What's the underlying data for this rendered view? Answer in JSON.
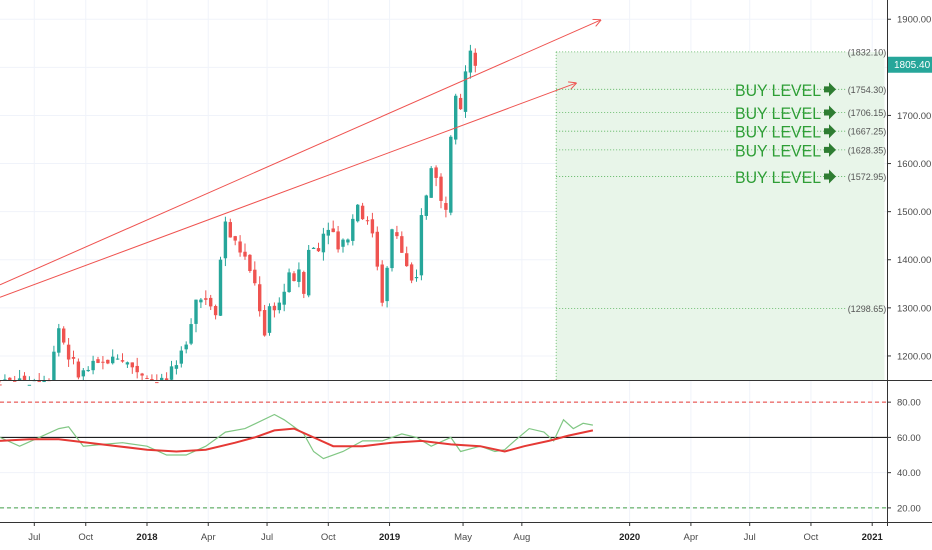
{
  "chart_data": [
    {
      "type": "candlestick",
      "title": "",
      "ylim": [
        1150,
        1940
      ],
      "y_ticks": [
        1200,
        1300,
        1400,
        1500,
        1600,
        1700,
        1800,
        1900
      ],
      "y_tick_labels": [
        "1200.00",
        "1300.00",
        "1400.00",
        "1500.00",
        "1600.00",
        "1700.00",
        "1800.00",
        "1900.00"
      ],
      "current_price": "1805.40",
      "price_badge_color": "#26a69a",
      "up_color": "#26a69a",
      "down_color": "#ef5350",
      "trendline_color": "#ef5350",
      "level_color": "#4caf50",
      "zone_fill": "#e8f5e9",
      "levels": [
        {
          "price": 1832.1,
          "label": "(1832.10)",
          "buy": false
        },
        {
          "price": 1754.3,
          "label": "(1754.30)",
          "buy": true
        },
        {
          "price": 1706.15,
          "label": "(1706.15)",
          "buy": true
        },
        {
          "price": 1667.25,
          "label": "(1667.25)",
          "buy": true
        },
        {
          "price": 1628.35,
          "label": "(1628.35)",
          "buy": true
        },
        {
          "price": 1572.95,
          "label": "(1572.95)",
          "buy": true
        },
        {
          "price": 1298.65,
          "label": "(1298.65)",
          "buy": false
        }
      ],
      "buy_label": "BUY LEVEL",
      "trendlines": [
        {
          "from": {
            "t": 0,
            "price": 1348
          },
          "to": {
            "t": 122.5,
            "price": 1898
          },
          "arrow": true
        },
        {
          "from": {
            "t": 0,
            "price": 1322
          },
          "to": {
            "t": 117.5,
            "price": 1767
          },
          "arrow": true
        }
      ],
      "anchor_points": [
        [
          0,
          1140
        ],
        [
          6,
          1150
        ],
        [
          10,
          1160
        ],
        [
          12,
          1260
        ],
        [
          14,
          1200
        ],
        [
          16,
          1160
        ],
        [
          20,
          1180
        ],
        [
          24,
          1200
        ],
        [
          28,
          1170
        ],
        [
          31,
          1150
        ],
        [
          34,
          1150
        ],
        [
          36,
          1170
        ],
        [
          38,
          1240
        ],
        [
          40,
          1320
        ],
        [
          42,
          1320
        ],
        [
          44,
          1300
        ],
        [
          45,
          1400
        ],
        [
          46,
          1480
        ],
        [
          47,
          1450
        ],
        [
          49,
          1420
        ],
        [
          51,
          1380
        ],
        [
          52,
          1350
        ],
        [
          53,
          1300
        ],
        [
          54,
          1250
        ],
        [
          55,
          1300
        ],
        [
          57,
          1310
        ],
        [
          59,
          1360
        ],
        [
          61,
          1370
        ],
        [
          62,
          1330
        ],
        [
          63,
          1420
        ],
        [
          65,
          1430
        ],
        [
          67,
          1480
        ],
        [
          69,
          1430
        ],
        [
          71,
          1450
        ],
        [
          73,
          1520
        ],
        [
          74,
          1490
        ],
        [
          76,
          1460
        ],
        [
          78,
          1320
        ],
        [
          79,
          1380
        ],
        [
          80,
          1460
        ],
        [
          81,
          1450
        ],
        [
          83,
          1380
        ],
        [
          84,
          1340
        ],
        [
          85,
          1360
        ],
        [
          86,
          1500
        ],
        [
          87,
          1530
        ],
        [
          88,
          1590
        ],
        [
          89,
          1580
        ],
        [
          90,
          1520
        ],
        [
          91,
          1510
        ],
        [
          92,
          1670
        ],
        [
          93,
          1760
        ],
        [
          94,
          1720
        ],
        [
          95,
          1790
        ],
        [
          96,
          1820
        ],
        [
          97,
          1805
        ]
      ],
      "x_ticks": [
        {
          "t": 7,
          "label": "Jul",
          "bold": false
        },
        {
          "t": 17.5,
          "label": "Oct",
          "bold": false
        },
        {
          "t": 30,
          "label": "2018",
          "bold": true
        },
        {
          "t": 42.5,
          "label": "Apr",
          "bold": false
        },
        {
          "t": 54.5,
          "label": "Jul",
          "bold": false
        },
        {
          "t": 67,
          "label": "Oct",
          "bold": false
        },
        {
          "t": 79.5,
          "label": "2019",
          "bold": true
        },
        {
          "t": 94.5,
          "label": "May",
          "bold": false
        },
        {
          "t": 106.5,
          "label": "Aug",
          "bold": false
        },
        {
          "t": 128.5,
          "label": "2020",
          "bold": true
        },
        {
          "t": 141,
          "label": "Apr",
          "bold": false
        },
        {
          "t": 153,
          "label": "Jul",
          "bold": false
        },
        {
          "t": 165.5,
          "label": "Oct",
          "bold": false
        },
        {
          "t": 178,
          "label": "2021",
          "bold": true
        }
      ]
    },
    {
      "type": "line",
      "title": "",
      "ylim": [
        12,
        92
      ],
      "y_ticks": [
        20,
        40,
        60,
        80
      ],
      "y_tick_labels": [
        "20.00",
        "40.00",
        "60.00",
        "80.00"
      ],
      "bands": [
        {
          "value": 80,
          "color": "#e53935",
          "style": "dashed"
        },
        {
          "value": 60,
          "color": "#000000",
          "style": "solid"
        },
        {
          "value": 20,
          "color": "#43a047",
          "style": "dashed"
        }
      ],
      "series": [
        {
          "color": "#81c784",
          "values": [
            [
              0,
              60
            ],
            [
              4,
              55
            ],
            [
              8,
              60
            ],
            [
              12,
              65
            ],
            [
              14,
              66
            ],
            [
              17,
              55
            ],
            [
              21,
              56
            ],
            [
              25,
              57
            ],
            [
              30,
              55
            ],
            [
              34,
              50
            ],
            [
              38,
              50
            ],
            [
              42,
              55
            ],
            [
              46,
              63
            ],
            [
              50,
              65
            ],
            [
              56,
              73
            ],
            [
              58,
              70
            ],
            [
              62,
              62
            ],
            [
              64,
              52
            ],
            [
              66,
              48
            ],
            [
              70,
              52
            ],
            [
              74,
              58
            ],
            [
              78,
              58
            ],
            [
              82,
              62
            ],
            [
              85,
              60
            ],
            [
              88,
              55
            ],
            [
              92,
              60
            ],
            [
              94,
              52
            ],
            [
              98,
              55
            ],
            [
              101,
              52
            ],
            [
              103,
              53
            ],
            [
              105,
              58
            ],
            [
              108,
              65
            ],
            [
              111,
              63
            ],
            [
              113,
              58
            ],
            [
              115,
              70
            ],
            [
              117,
              65
            ],
            [
              119,
              68
            ],
            [
              121,
              67
            ]
          ]
        },
        {
          "color": "#e53935",
          "values": [
            [
              0,
              58
            ],
            [
              6,
              59
            ],
            [
              12,
              59
            ],
            [
              18,
              57
            ],
            [
              24,
              55
            ],
            [
              30,
              53
            ],
            [
              36,
              52
            ],
            [
              42,
              53
            ],
            [
              48,
              57
            ],
            [
              52,
              60
            ],
            [
              56,
              64
            ],
            [
              60,
              65
            ],
            [
              64,
              60
            ],
            [
              68,
              55
            ],
            [
              74,
              55
            ],
            [
              80,
              57
            ],
            [
              86,
              58
            ],
            [
              92,
              56
            ],
            [
              98,
              55
            ],
            [
              103,
              52
            ],
            [
              107,
              55
            ],
            [
              112,
              58
            ],
            [
              116,
              61
            ],
            [
              121,
              64
            ]
          ]
        }
      ]
    }
  ]
}
